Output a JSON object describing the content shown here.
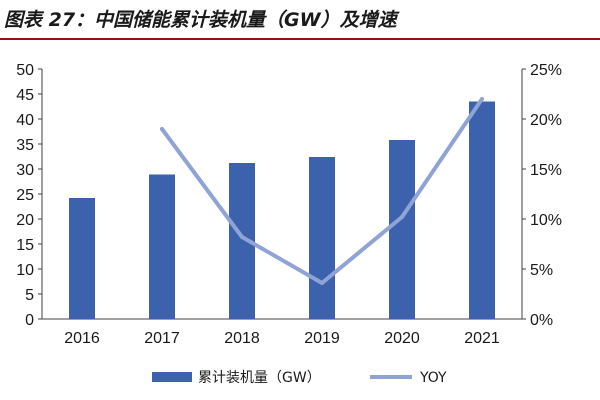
{
  "title": "图表 27：中国储能累计装机量（GW）及增速",
  "chart_data": {
    "type": "bar+line",
    "title": "图表 27：中国储能累计装机量（GW）及增速",
    "categories": [
      "2016",
      "2017",
      "2018",
      "2019",
      "2020",
      "2021"
    ],
    "series": [
      {
        "name": "累计装机量（GW）",
        "type": "bar",
        "axis": "left",
        "values": [
          24.2,
          28.9,
          31.2,
          32.4,
          35.8,
          43.5
        ],
        "color": "#3d62ad"
      },
      {
        "name": "YOY",
        "type": "line",
        "axis": "right",
        "values": [
          null,
          19.0,
          8.2,
          3.6,
          10.2,
          22.0
        ],
        "color": "#8fa3d6"
      }
    ],
    "y_left": {
      "ylim": [
        0,
        50
      ],
      "ticks": [
        "0",
        "5",
        "10",
        "15",
        "20",
        "25",
        "30",
        "35",
        "40",
        "45",
        "50"
      ]
    },
    "y_right": {
      "ylim": [
        0,
        25
      ],
      "ticks": [
        "0%",
        "5%",
        "10%",
        "15%",
        "20%",
        "25%"
      ]
    },
    "grid": false,
    "legend_position": "bottom"
  }
}
